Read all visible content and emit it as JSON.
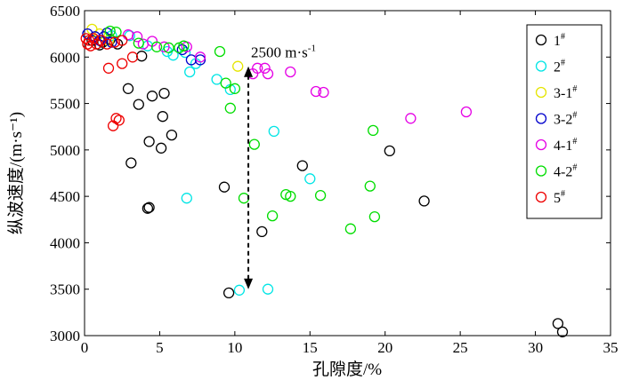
{
  "chart_data": {
    "type": "scatter",
    "title": "",
    "xlabel": "孔隙度/%",
    "ylabel": "纵波速度/(m·s⁻¹)",
    "xlim": [
      0,
      35
    ],
    "ylim": [
      3000,
      6500
    ],
    "xticks": [
      "0",
      "5",
      "10",
      "15",
      "20",
      "25",
      "30",
      "35"
    ],
    "yticks": [
      "3000",
      "3500",
      "4000",
      "4500",
      "5000",
      "5500",
      "6000",
      "6500"
    ],
    "legend_position": "top-right",
    "annotation": {
      "text": "2500 m·s",
      "superscript": "-1",
      "arrow_x": 10.9,
      "arrow_from": 3500,
      "arrow_to": 5900
    },
    "series": [
      {
        "name": "1",
        "sup": "#",
        "color": "#000000",
        "points": [
          [
            0.5,
            6180
          ],
          [
            1.0,
            6130
          ],
          [
            1.2,
            6160
          ],
          [
            1.7,
            6190
          ],
          [
            2.2,
            6140
          ],
          [
            3.8,
            6010
          ],
          [
            2.9,
            5660
          ],
          [
            3.6,
            5490
          ],
          [
            4.5,
            5580
          ],
          [
            5.3,
            5610
          ],
          [
            5.2,
            5360
          ],
          [
            4.3,
            5090
          ],
          [
            5.1,
            5020
          ],
          [
            5.8,
            5160
          ],
          [
            3.1,
            4860
          ],
          [
            4.2,
            4370
          ],
          [
            4.3,
            4380
          ],
          [
            9.3,
            4600
          ],
          [
            11.8,
            4120
          ],
          [
            14.5,
            4830
          ],
          [
            20.3,
            4990
          ],
          [
            22.6,
            4450
          ],
          [
            9.6,
            3460
          ],
          [
            31.5,
            3130
          ],
          [
            31.8,
            3040
          ]
        ]
      },
      {
        "name": "2",
        "sup": "#",
        "color": "#00e5e5",
        "points": [
          [
            1.8,
            6230
          ],
          [
            3.0,
            6230
          ],
          [
            4.2,
            6120
          ],
          [
            5.5,
            6060
          ],
          [
            5.9,
            6020
          ],
          [
            6.7,
            6050
          ],
          [
            7.0,
            5840
          ],
          [
            7.4,
            5930
          ],
          [
            8.8,
            5760
          ],
          [
            9.7,
            5650
          ],
          [
            12.6,
            5200
          ],
          [
            6.8,
            4480
          ],
          [
            15.0,
            4690
          ],
          [
            10.3,
            3490
          ],
          [
            12.2,
            3500
          ]
        ]
      },
      {
        "name": "3-1",
        "sup": "#",
        "color": "#e5e500",
        "points": [
          [
            0.5,
            6300
          ],
          [
            1.0,
            6250
          ],
          [
            1.6,
            6180
          ],
          [
            10.2,
            5900
          ]
        ]
      },
      {
        "name": "3-2",
        "sup": "#",
        "color": "#0000cc",
        "points": [
          [
            0.2,
            6250
          ],
          [
            0.7,
            6220
          ],
          [
            1.0,
            6180
          ],
          [
            1.3,
            6220
          ],
          [
            1.5,
            6260
          ],
          [
            1.8,
            6160
          ],
          [
            6.5,
            6080
          ],
          [
            7.1,
            5970
          ],
          [
            7.7,
            5970
          ]
        ]
      },
      {
        "name": "4-1",
        "sup": "#",
        "color": "#e500e5",
        "points": [
          [
            2.9,
            6240
          ],
          [
            3.5,
            6220
          ],
          [
            3.9,
            6140
          ],
          [
            4.5,
            6170
          ],
          [
            5.3,
            6110
          ],
          [
            6.8,
            6110
          ],
          [
            7.7,
            6000
          ],
          [
            11.2,
            5820
          ],
          [
            11.5,
            5880
          ],
          [
            12.0,
            5880
          ],
          [
            12.2,
            5820
          ],
          [
            13.7,
            5840
          ],
          [
            15.4,
            5630
          ],
          [
            15.9,
            5620
          ],
          [
            21.7,
            5340
          ],
          [
            25.4,
            5410
          ]
        ]
      },
      {
        "name": "4-2",
        "sup": "#",
        "color": "#00dd00",
        "points": [
          [
            1.7,
            6280
          ],
          [
            2.1,
            6270
          ],
          [
            3.6,
            6150
          ],
          [
            4.8,
            6110
          ],
          [
            5.6,
            6100
          ],
          [
            6.3,
            6100
          ],
          [
            6.6,
            6120
          ],
          [
            9.0,
            6060
          ],
          [
            9.4,
            5720
          ],
          [
            9.7,
            5450
          ],
          [
            10.0,
            5660
          ],
          [
            11.3,
            5060
          ],
          [
            10.6,
            4480
          ],
          [
            12.5,
            4290
          ],
          [
            13.4,
            4520
          ],
          [
            13.7,
            4500
          ],
          [
            15.7,
            4510
          ],
          [
            17.7,
            4150
          ],
          [
            19.0,
            4610
          ],
          [
            19.2,
            5210
          ],
          [
            19.3,
            4280
          ]
        ]
      },
      {
        "name": "5",
        "sup": "#",
        "color": "#ee0000",
        "points": [
          [
            0.1,
            6200
          ],
          [
            0.2,
            6140
          ],
          [
            0.3,
            6180
          ],
          [
            0.4,
            6120
          ],
          [
            0.6,
            6200
          ],
          [
            0.8,
            6140
          ],
          [
            1.1,
            6180
          ],
          [
            1.5,
            6140
          ],
          [
            2.0,
            6160
          ],
          [
            2.5,
            6180
          ],
          [
            1.6,
            5880
          ],
          [
            2.5,
            5930
          ],
          [
            3.2,
            6000
          ],
          [
            2.1,
            5340
          ],
          [
            2.3,
            5320
          ],
          [
            1.9,
            5260
          ]
        ]
      }
    ]
  }
}
